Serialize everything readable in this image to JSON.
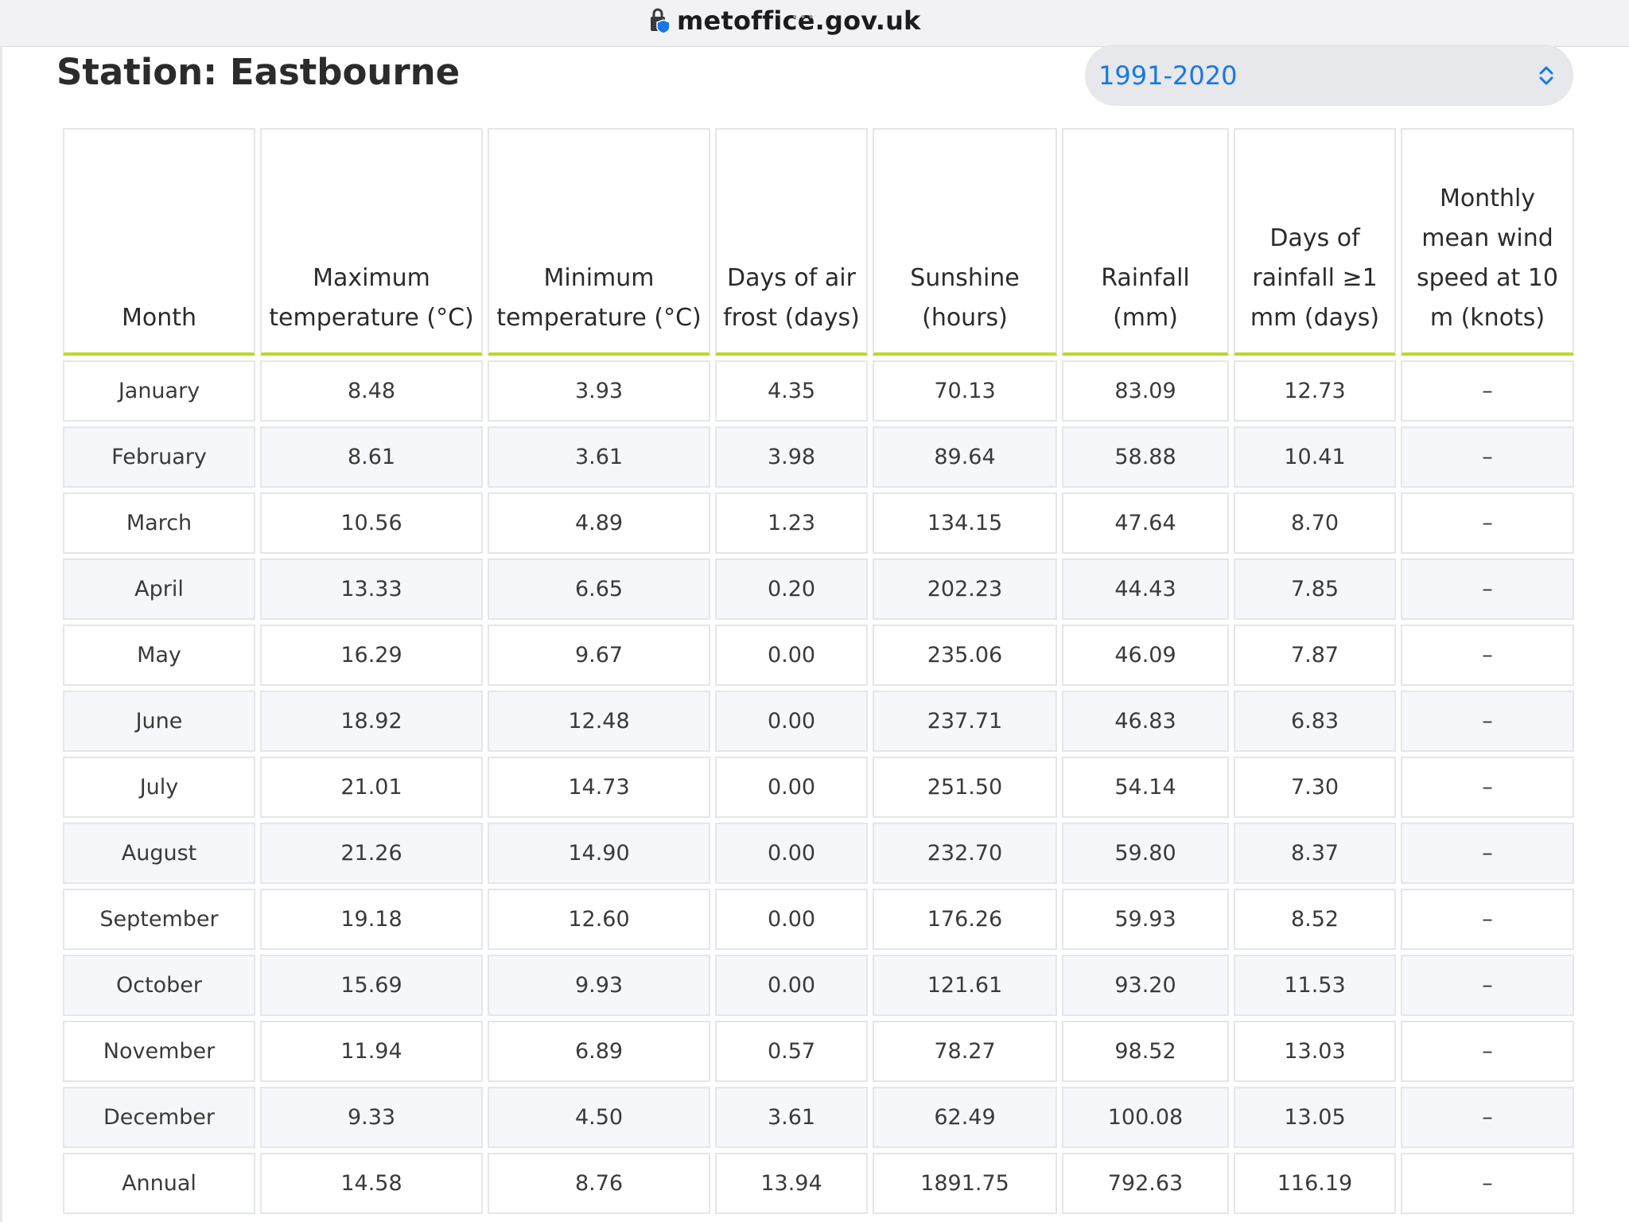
{
  "browser": {
    "url": "metoffice.gov.uk",
    "menu_dots": "•••"
  },
  "page": {
    "title": "Station: Eastbourne",
    "period_select": {
      "value": "1991-2020"
    }
  },
  "table": {
    "headers": {
      "month": "Month",
      "max_temp": "Maximum temperature (°C)",
      "min_temp": "Minimum temperature (°C)",
      "air_frost": "Days of air frost (days)",
      "sunshine": "Sunshine (hours)",
      "rainfall": "Rainfall (mm)",
      "rain_days": "Days of rainfall ≥1 mm (days)",
      "wind": "Monthly mean wind speed at 10 m (knots)"
    },
    "rows": [
      {
        "month": "January",
        "max_temp": "8.48",
        "min_temp": "3.93",
        "air_frost": "4.35",
        "sunshine": "70.13",
        "rainfall": "83.09",
        "rain_days": "12.73",
        "wind": "–"
      },
      {
        "month": "February",
        "max_temp": "8.61",
        "min_temp": "3.61",
        "air_frost": "3.98",
        "sunshine": "89.64",
        "rainfall": "58.88",
        "rain_days": "10.41",
        "wind": "–"
      },
      {
        "month": "March",
        "max_temp": "10.56",
        "min_temp": "4.89",
        "air_frost": "1.23",
        "sunshine": "134.15",
        "rainfall": "47.64",
        "rain_days": "8.70",
        "wind": "–"
      },
      {
        "month": "April",
        "max_temp": "13.33",
        "min_temp": "6.65",
        "air_frost": "0.20",
        "sunshine": "202.23",
        "rainfall": "44.43",
        "rain_days": "7.85",
        "wind": "–"
      },
      {
        "month": "May",
        "max_temp": "16.29",
        "min_temp": "9.67",
        "air_frost": "0.00",
        "sunshine": "235.06",
        "rainfall": "46.09",
        "rain_days": "7.87",
        "wind": "–"
      },
      {
        "month": "June",
        "max_temp": "18.92",
        "min_temp": "12.48",
        "air_frost": "0.00",
        "sunshine": "237.71",
        "rainfall": "46.83",
        "rain_days": "6.83",
        "wind": "–"
      },
      {
        "month": "July",
        "max_temp": "21.01",
        "min_temp": "14.73",
        "air_frost": "0.00",
        "sunshine": "251.50",
        "rainfall": "54.14",
        "rain_days": "7.30",
        "wind": "–"
      },
      {
        "month": "August",
        "max_temp": "21.26",
        "min_temp": "14.90",
        "air_frost": "0.00",
        "sunshine": "232.70",
        "rainfall": "59.80",
        "rain_days": "8.37",
        "wind": "–"
      },
      {
        "month": "September",
        "max_temp": "19.18",
        "min_temp": "12.60",
        "air_frost": "0.00",
        "sunshine": "176.26",
        "rainfall": "59.93",
        "rain_days": "8.52",
        "wind": "–"
      },
      {
        "month": "October",
        "max_temp": "15.69",
        "min_temp": "9.93",
        "air_frost": "0.00",
        "sunshine": "121.61",
        "rainfall": "93.20",
        "rain_days": "11.53",
        "wind": "–"
      },
      {
        "month": "November",
        "max_temp": "11.94",
        "min_temp": "6.89",
        "air_frost": "0.57",
        "sunshine": "78.27",
        "rainfall": "98.52",
        "rain_days": "13.03",
        "wind": "–"
      },
      {
        "month": "December",
        "max_temp": "9.33",
        "min_temp": "4.50",
        "air_frost": "3.61",
        "sunshine": "62.49",
        "rainfall": "100.08",
        "rain_days": "13.05",
        "wind": "–"
      },
      {
        "month": "Annual",
        "max_temp": "14.58",
        "min_temp": "8.76",
        "air_frost": "13.94",
        "sunshine": "1891.75",
        "rainfall": "792.63",
        "rain_days": "116.19",
        "wind": "–"
      }
    ]
  },
  "colors": {
    "accent_underline": "#bcd82b",
    "select_text": "#1877e6",
    "zebra_row": "#f5f7fa"
  },
  "icons": {
    "lock": "lock-shield-icon",
    "select": "chevron-up-down-icon"
  }
}
